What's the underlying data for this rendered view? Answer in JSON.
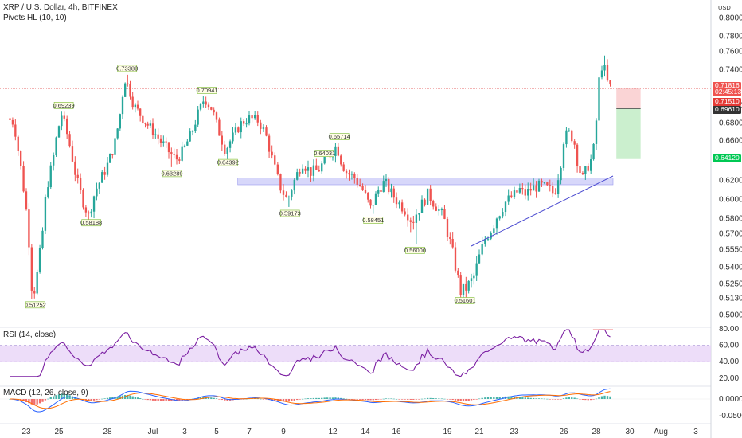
{
  "header": {
    "symbol": "XRP / U.S. Dollar, 4h, BITFINEX",
    "indicator": "Pivots HL (10, 10)",
    "currency": "USD"
  },
  "colors": {
    "up": "#26a69a",
    "down": "#ef5350",
    "zone": "#b7b7f5",
    "trendline": "#4a4ad0",
    "rsi": "#7b1fa2",
    "macd_line": "#2962ff",
    "signal_line": "#ff6d00",
    "price_tag_red": "#ef5350",
    "price_tag_green": "#00c853"
  },
  "chart_data": [
    {
      "type": "candlestick",
      "y_ticks": [
        "0.80000",
        "0.78000",
        "0.76000",
        "0.74000",
        "0.70000",
        "0.68000",
        "0.66000",
        "0.62000",
        "0.60000",
        "0.58000",
        "0.57000",
        "0.55500",
        "0.54000",
        "0.52500",
        "0.51300",
        "0.50000"
      ],
      "y_tick_values": [
        0.8,
        0.78,
        0.76,
        0.74,
        0.7,
        0.68,
        0.66,
        0.62,
        0.6,
        0.58,
        0.57,
        0.555,
        0.54,
        0.525,
        0.513,
        0.5
      ],
      "x_ticks": [
        "23",
        "25",
        "28",
        "Jul",
        "3",
        "5",
        "7",
        "9",
        "12",
        "14",
        "16",
        "19",
        "21",
        "23",
        "26",
        "28",
        "30",
        "Aug",
        "3"
      ],
      "pivot_labels": [
        "0.51252",
        "0.69239",
        "0.58188",
        "0.73388",
        "0.63289",
        "0.70941",
        "0.64392",
        "0.59173",
        "0.64031",
        "0.65714",
        "0.58451",
        "0.56000",
        "0.51601"
      ],
      "price_tags": {
        "current": "0.71816",
        "countdown": "02:45:13",
        "level_1": "0.71510",
        "level_2": "0.69610",
        "level_3": "0.64120"
      },
      "support_zone": [
        0.615,
        0.622
      ],
      "trendline": {
        "from": [
          "Jul 21",
          0.56
        ],
        "to": [
          "Jul 28",
          0.624
        ]
      },
      "trade_box": {
        "entry": 0.696,
        "stop": 0.715,
        "target": 0.641
      }
    },
    {
      "type": "line",
      "title": "RSI (14, close)",
      "y_ticks": [
        "80.00",
        "60.00",
        "40.00",
        "20.00"
      ],
      "y_tick_values": [
        80,
        60,
        40,
        20
      ],
      "band": [
        40,
        60
      ]
    },
    {
      "type": "line",
      "title": "MACD (12, 26, close, 9)",
      "y_ticks": [
        "0.00000",
        "-0.05000"
      ],
      "y_tick_values": [
        0.0,
        -0.05
      ]
    }
  ]
}
